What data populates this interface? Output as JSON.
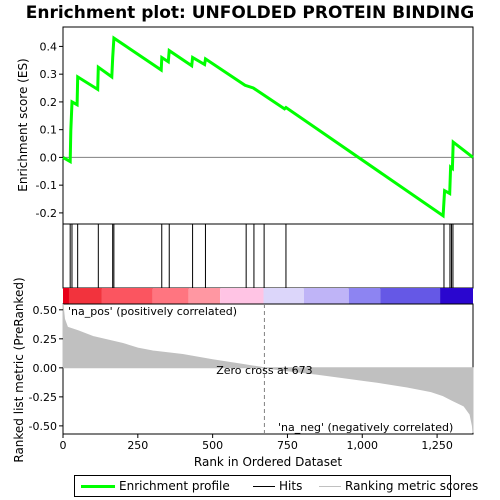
{
  "chart_data": {
    "type": "line",
    "title": "Enrichment plot: UNFOLDED PROTEIN BINDING",
    "top_panel": {
      "ylabel": "Enrichment score (ES)",
      "ylim": [
        -0.24,
        0.47
      ],
      "yticks": [
        -0.2,
        -0.1,
        0.0,
        0.1,
        0.2,
        0.3,
        0.4
      ],
      "ytick_labels": [
        "-0.2",
        "-0.1",
        "0.0",
        "0.1",
        "0.2",
        "0.3",
        "0.4"
      ],
      "series": [
        {
          "name": "Enrichment profile",
          "color": "#00ff00",
          "points": [
            [
              0,
              0.0
            ],
            [
              24,
              -0.015
            ],
            [
              26,
              0.095
            ],
            [
              30,
              0.2
            ],
            [
              47,
              0.19
            ],
            [
              49,
              0.29
            ],
            [
              116,
              0.245
            ],
            [
              118,
              0.325
            ],
            [
              163,
              0.29
            ],
            [
              166,
              0.36
            ],
            [
              170,
              0.43
            ],
            [
              328,
              0.315
            ],
            [
              330,
              0.36
            ],
            [
              352,
              0.345
            ],
            [
              355,
              0.385
            ],
            [
              430,
              0.33
            ],
            [
              433,
              0.36
            ],
            [
              473,
              0.335
            ],
            [
              476,
              0.355
            ],
            [
              608,
              0.26
            ],
            [
              636,
              0.25
            ],
            [
              740,
              0.175
            ],
            [
              745,
              0.18
            ],
            [
              1270,
              -0.21
            ],
            [
              1275,
              -0.12
            ],
            [
              1292,
              -0.13
            ],
            [
              1295,
              -0.035
            ],
            [
              1301,
              -0.04
            ],
            [
              1304,
              0.055
            ],
            [
              1370,
              0.0
            ]
          ]
        }
      ]
    },
    "hits": {
      "name": "Hits",
      "color": "#000000",
      "positions": [
        24,
        30,
        49,
        118,
        166,
        170,
        330,
        355,
        433,
        476,
        612,
        638,
        672,
        745,
        1273,
        1293,
        1298,
        1303
      ]
    },
    "bottom_panel": {
      "ylabel": "Ranked list metric (PreRanked)",
      "xlabel": "Rank in Ordered Dataset",
      "ylim": [
        -0.57,
        0.55
      ],
      "yticks": [
        -0.5,
        -0.25,
        0.0,
        0.25,
        0.5
      ],
      "ytick_labels": [
        "-0.50",
        "-0.25",
        "0.00",
        "0.25",
        "0.50"
      ],
      "series": [
        {
          "name": "Ranking metric scores",
          "color": "#c0c0c0",
          "points": [
            [
              0,
              0.55
            ],
            [
              5,
              0.42
            ],
            [
              15,
              0.35
            ],
            [
              50,
              0.32
            ],
            [
              100,
              0.27
            ],
            [
              150,
              0.24
            ],
            [
              200,
              0.21
            ],
            [
              250,
              0.17
            ],
            [
              300,
              0.145
            ],
            [
              400,
              0.115
            ],
            [
              500,
              0.07
            ],
            [
              600,
              0.03
            ],
            [
              673,
              0.0
            ],
            [
              750,
              -0.025
            ],
            [
              850,
              -0.055
            ],
            [
              950,
              -0.09
            ],
            [
              1050,
              -0.125
            ],
            [
              1150,
              -0.165
            ],
            [
              1230,
              -0.205
            ],
            [
              1270,
              -0.24
            ],
            [
              1300,
              -0.28
            ],
            [
              1340,
              -0.33
            ],
            [
              1360,
              -0.4
            ],
            [
              1368,
              -0.5
            ],
            [
              1370,
              -0.56
            ]
          ]
        }
      ],
      "annotations": {
        "pos_label": "'na_pos' (positively correlated)",
        "neg_label": "'na_neg' (negatively correlated)",
        "zero_cross": "Zero cross at 673",
        "zero_cross_rank": 673
      }
    },
    "xlim": [
      0,
      1370
    ],
    "xticks": [
      0,
      250,
      500,
      750,
      1000,
      1250
    ],
    "xtick_labels": [
      "0",
      "250",
      "500",
      "750",
      "1,000",
      "1,250"
    ],
    "heat_bar": {
      "segments": [
        {
          "from": 0,
          "to": 20,
          "color": "#e8001a"
        },
        {
          "from": 20,
          "to": 130,
          "color": "#f2333d"
        },
        {
          "from": 130,
          "to": 300,
          "color": "#fb5560"
        },
        {
          "from": 300,
          "to": 420,
          "color": "#ff7580"
        },
        {
          "from": 420,
          "to": 525,
          "color": "#ff97a2"
        },
        {
          "from": 525,
          "to": 670,
          "color": "#ffc4e4"
        },
        {
          "from": 670,
          "to": 805,
          "color": "#dcd6fa"
        },
        {
          "from": 805,
          "to": 955,
          "color": "#bfb4f7"
        },
        {
          "from": 955,
          "to": 1060,
          "color": "#8d84f2"
        },
        {
          "from": 1060,
          "to": 1260,
          "color": "#6558e6"
        },
        {
          "from": 1260,
          "to": 1370,
          "color": "#2a06cf"
        }
      ]
    },
    "legend": {
      "placement": "bottom",
      "entries": [
        "Enrichment profile",
        "Hits",
        "Ranking metric scores"
      ],
      "colors": [
        "#00ff00",
        "#000000",
        "#c0c0c0"
      ]
    },
    "colors": {
      "pos_text": "#cc0000",
      "neg_text": "#0000cc",
      "zero_line": "#808080"
    }
  }
}
